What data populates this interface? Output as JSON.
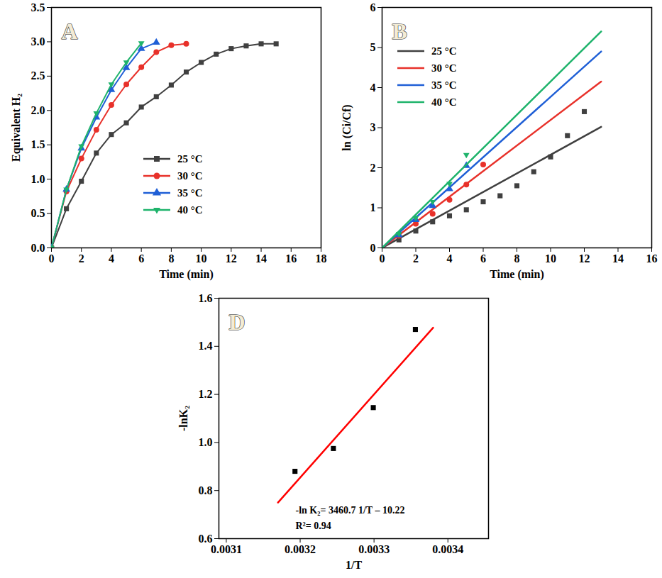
{
  "chart_data": [
    {
      "type": "line",
      "title": "A",
      "x_label": "Time (min)",
      "y_label": "Equivalent H₂",
      "xlim": [
        0,
        18
      ],
      "xticks": [
        0,
        2,
        4,
        6,
        8,
        10,
        12,
        14,
        16,
        18
      ],
      "ylim": [
        0,
        3.5
      ],
      "yticks": [
        {
          "value": 0,
          "label": "0.0"
        },
        0.5,
        {
          "value": 1,
          "label": "1.0"
        },
        1.5,
        {
          "value": 2,
          "label": "2.0"
        },
        2.5,
        {
          "value": 3,
          "label": "3.0"
        },
        3.5
      ],
      "legend": "bottom",
      "series": [
        {
          "name": "25 °C",
          "color": "#404040",
          "marker": "square",
          "x": [
            0,
            1,
            2,
            3,
            4,
            5,
            6,
            7,
            8,
            9,
            10,
            11,
            12,
            13,
            14,
            15
          ],
          "values": [
            0,
            0.57,
            0.97,
            1.38,
            1.65,
            1.82,
            2.05,
            2.2,
            2.37,
            2.56,
            2.7,
            2.82,
            2.9,
            2.94,
            2.97,
            2.97
          ]
        },
        {
          "name": "30 °C",
          "color": "#e8312a",
          "marker": "circle",
          "x": [
            0,
            1,
            2,
            3,
            4,
            5,
            6,
            7,
            8,
            9
          ],
          "values": [
            0,
            0.82,
            1.3,
            1.72,
            2.08,
            2.38,
            2.63,
            2.85,
            2.95,
            2.97
          ]
        },
        {
          "name": "35 °C",
          "color": "#1f5fd6",
          "marker": "triangle",
          "x": [
            0,
            1,
            2,
            3,
            4,
            5,
            6,
            7
          ],
          "values": [
            0,
            0.85,
            1.45,
            1.9,
            2.3,
            2.62,
            2.9,
            2.99
          ]
        },
        {
          "name": "40 °C",
          "color": "#1eb36b",
          "marker": "triangle-down",
          "x": [
            0,
            1,
            2,
            3,
            4,
            5,
            6
          ],
          "values": [
            0,
            0.85,
            1.48,
            1.96,
            2.38,
            2.7,
            2.98
          ]
        }
      ]
    },
    {
      "type": "scatter",
      "title": "B",
      "x_label": "Time (min)",
      "y_label": "ln (Ci/Cf)",
      "xlim": [
        0,
        16
      ],
      "xticks": [
        0,
        2,
        4,
        6,
        8,
        10,
        12,
        14,
        16
      ],
      "ylim": [
        0,
        6
      ],
      "yticks": [
        0,
        1,
        2,
        3,
        4,
        5,
        6
      ],
      "legend": "upper left",
      "series": [
        {
          "name": "25 °C",
          "color": "#404040",
          "marker": "square",
          "x": [
            1,
            2,
            3,
            4,
            5,
            6,
            7,
            8,
            9,
            10,
            11,
            12
          ],
          "values": [
            0.2,
            0.42,
            0.65,
            0.8,
            0.95,
            1.15,
            1.3,
            1.55,
            1.9,
            2.27,
            2.8,
            3.4
          ],
          "fit": {
            "x": [
              0,
              13
            ],
            "values": [
              0,
              3.02
            ]
          }
        },
        {
          "name": "30 °C",
          "color": "#e8312a",
          "marker": "circle",
          "x": [
            1,
            2,
            3,
            4,
            5,
            6
          ],
          "values": [
            0.3,
            0.6,
            0.85,
            1.2,
            1.58,
            2.08
          ],
          "fit": {
            "x": [
              0,
              13
            ],
            "values": [
              0,
              4.15
            ]
          }
        },
        {
          "name": "35 °C",
          "color": "#1f5fd6",
          "marker": "triangle",
          "x": [
            1,
            2,
            3,
            4,
            5
          ],
          "values": [
            0.32,
            0.7,
            1.05,
            1.47,
            2.05
          ],
          "fit": {
            "x": [
              0,
              13
            ],
            "values": [
              0,
              4.9
            ]
          }
        },
        {
          "name": "40 °C",
          "color": "#1eb36b",
          "marker": "triangle-down",
          "x": [
            1,
            2,
            3,
            4,
            5
          ],
          "values": [
            0.35,
            0.75,
            1.15,
            1.6,
            2.32
          ],
          "fit": {
            "x": [
              0,
              13
            ],
            "values": [
              0,
              5.4
            ]
          }
        }
      ]
    },
    {
      "type": "scatter",
      "title": "D",
      "x_label": "1/T",
      "y_label": "-lnK₂",
      "xlim": [
        0.00309,
        0.003455
      ],
      "xticks": [
        0.0031,
        0.0032,
        0.0033,
        0.0034
      ],
      "ylim": [
        0.6,
        1.6
      ],
      "yticks": [
        0.6,
        0.8,
        {
          "value": 1,
          "label": "1.0"
        },
        1.2,
        1.4,
        1.6
      ],
      "annotations": [
        "-ln K₂= 3460.7 1/T – 10.22",
        "R²= 0.94"
      ],
      "series": [
        {
          "color": "#000000",
          "marker": "square",
          "x": [
            0.003193,
            0.003245,
            0.003299,
            0.003356
          ],
          "values": [
            0.88,
            0.975,
            1.145,
            1.47
          ],
          "fit": {
            "color": "#ff0000",
            "x": [
              0.00317,
              0.00338
            ],
            "values": [
              0.75,
              1.477
            ]
          }
        }
      ]
    }
  ]
}
